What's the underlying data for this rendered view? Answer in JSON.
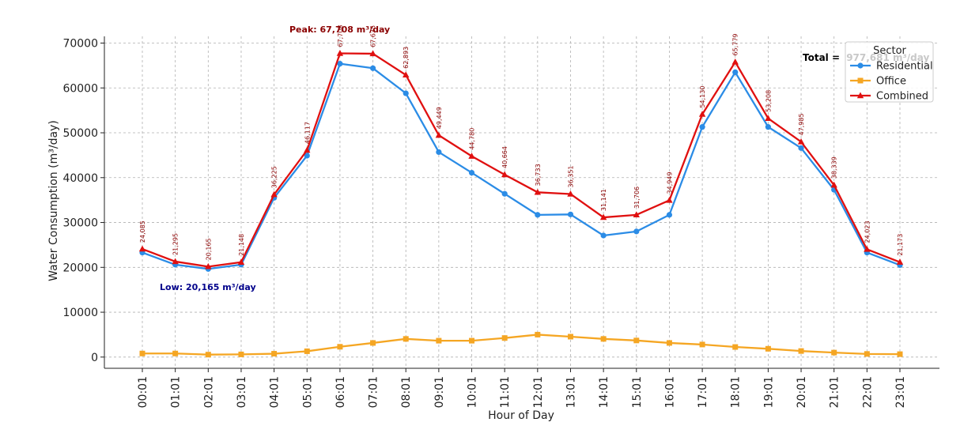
{
  "chart_data": {
    "type": "line",
    "xlabel": "Hour of Day",
    "ylabel": "Water Consumption (m³/day)",
    "ylim": [
      -2500,
      71500
    ],
    "yticks": [
      0,
      10000,
      20000,
      30000,
      40000,
      50000,
      60000,
      70000
    ],
    "grid": true,
    "categories": [
      "00:01",
      "01:01",
      "02:01",
      "03:01",
      "04:01",
      "05:01",
      "06:01",
      "07:01",
      "08:01",
      "09:01",
      "10:01",
      "11:01",
      "12:01",
      "13:01",
      "14:01",
      "15:01",
      "16:01",
      "17:01",
      "18:01",
      "19:01",
      "20:01",
      "21:01",
      "22:01",
      "23:01"
    ],
    "series": [
      {
        "name": "Residential",
        "color": "#2b8ce6",
        "marker": "circle",
        "values": [
          23300,
          20600,
          19650,
          20600,
          35500,
          44900,
          65400,
          64400,
          58800,
          45700,
          41100,
          36400,
          31700,
          31800,
          27100,
          28000,
          31700,
          51300,
          63500,
          51300,
          46600,
          37300,
          23300,
          20500
        ]
      },
      {
        "name": "Office",
        "color": "#f5a623",
        "marker": "square",
        "values": [
          800,
          800,
          550,
          600,
          750,
          1300,
          2300,
          3150,
          4050,
          3650,
          3650,
          4250,
          5000,
          4550,
          4050,
          3700,
          3150,
          2800,
          2250,
          1850,
          1350,
          1000,
          700,
          650
        ]
      },
      {
        "name": "Combined",
        "color": "#e01010",
        "marker": "triangle",
        "values": [
          24085,
          21295,
          20165,
          21148,
          36225,
          46117,
          67708,
          67635,
          62893,
          49449,
          44780,
          40664,
          36733,
          36351,
          31141,
          31706,
          34949,
          54130,
          65779,
          53208,
          47985,
          38339,
          24023,
          21173
        ]
      }
    ],
    "data_labels": [
      "24,085",
      "21,295",
      "20,165",
      "21,148",
      "36,225",
      "46,117",
      "67,708",
      "67,635",
      "62,893",
      "49,449",
      "44,780",
      "40,664",
      "36,733",
      "36,351",
      "31,141",
      "31,706",
      "34,949",
      "54,130",
      "65,779",
      "53,208",
      "47,985",
      "38,339",
      "24,023",
      "21,173"
    ],
    "annotations": {
      "peak": "Peak: 67,708 m³/day",
      "low": "Low: 20,165 m³/day",
      "total_label": "Total =",
      "total_value": "977,681 m³/day"
    },
    "legend": {
      "title": "Sector",
      "placement": "top-right",
      "entries": [
        "Residential",
        "Office",
        "Combined"
      ]
    },
    "colors": {
      "peak_text": "#8b0000",
      "low_text": "#00008b",
      "total_value_text": "#c8c8c8"
    }
  }
}
